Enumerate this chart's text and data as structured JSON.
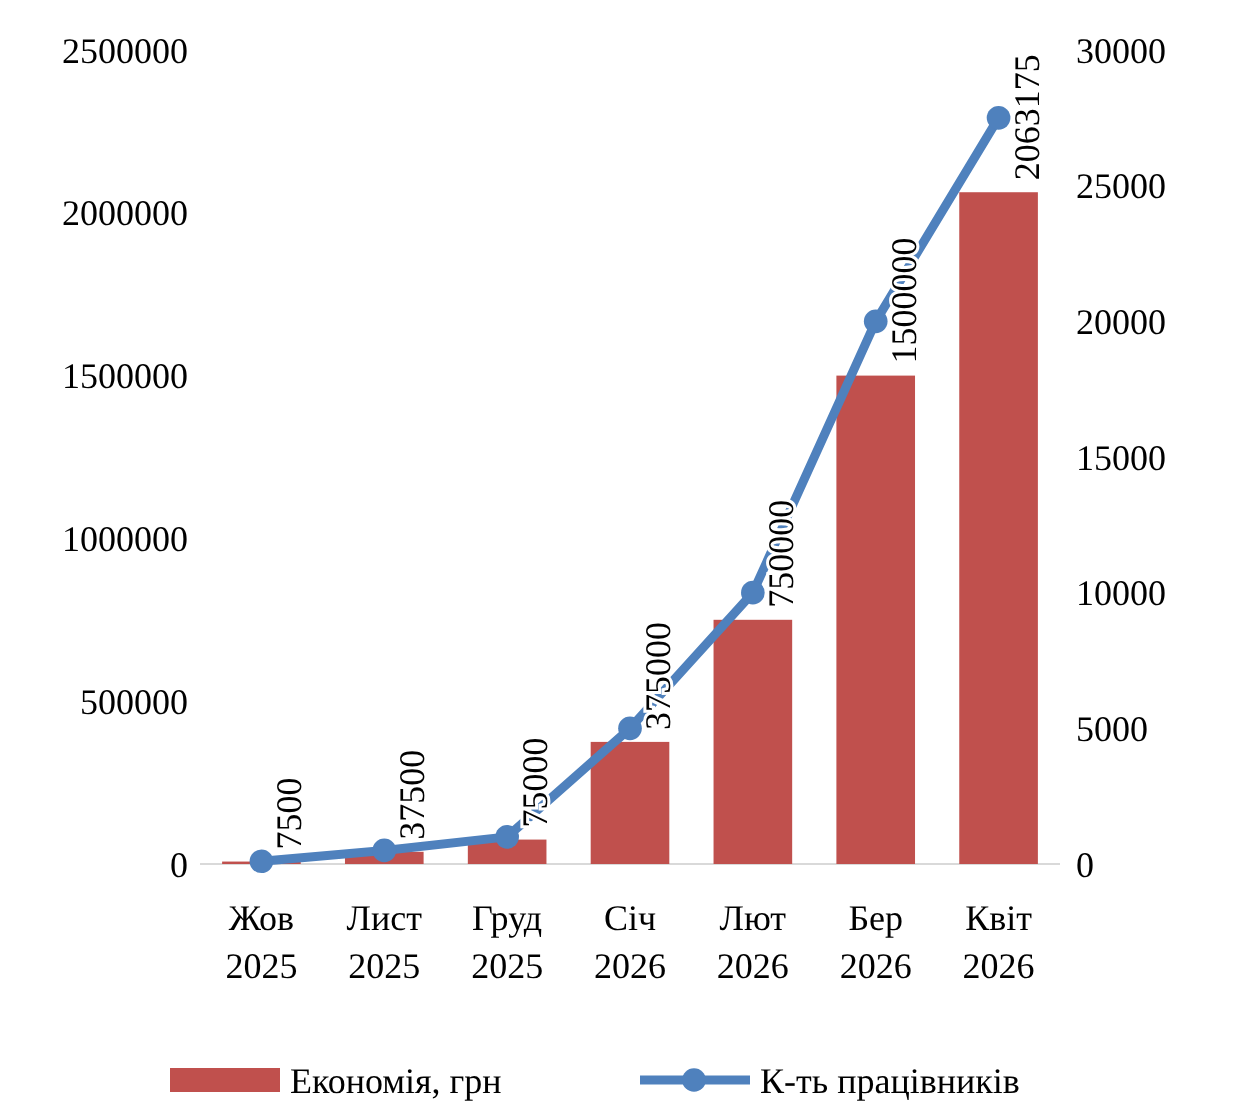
{
  "chart_data": {
    "type": "bar",
    "categories": [
      "Жов 2025",
      "Лист 2025",
      "Груд 2025",
      "Січ 2026",
      "Лют 2026",
      "Бер 2026",
      "Квіт 2026"
    ],
    "series": [
      {
        "name": "Економія, грн",
        "color": "#c0504d",
        "values": [
          7500,
          37500,
          75000,
          375000,
          750000,
          1500000,
          2063175
        ],
        "value_labels": [
          "7500",
          "37500",
          "75000",
          "375000",
          "750000",
          "1500000",
          "2063175"
        ]
      },
      {
        "name": "К-ть працівників",
        "type": "line",
        "axis": "y2",
        "color": "#4f81bd",
        "values": [
          100,
          500,
          1000,
          5000,
          10000,
          20000,
          27500
        ]
      }
    ],
    "ylim": [
      0,
      2500000
    ],
    "yticks": [
      0,
      500000,
      1000000,
      1500000,
      2000000,
      2500000
    ],
    "y2lim": [
      0,
      30000
    ],
    "y2ticks": [
      0,
      5000,
      10000,
      15000,
      20000,
      25000,
      30000
    ],
    "marker": "circle",
    "legend": "bottom"
  }
}
